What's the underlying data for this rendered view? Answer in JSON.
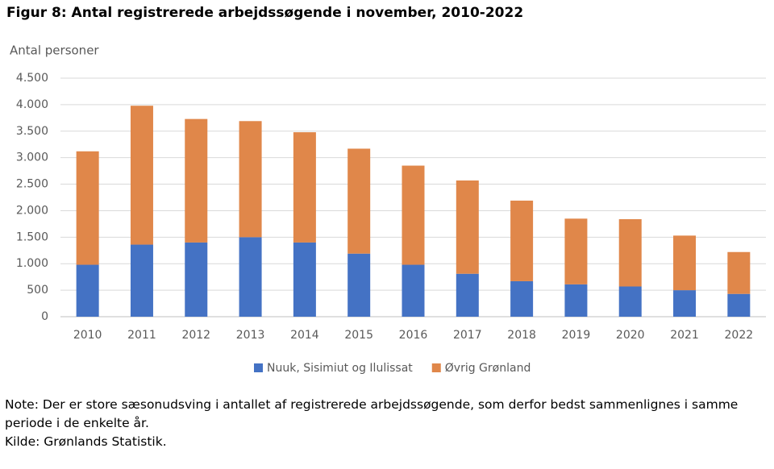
{
  "chart_data": {
    "type": "stacked-bar",
    "title": "Figur 8: Antal registrerede arbejdssøgende i november, 2010-2022",
    "y_label": "Antal personer",
    "categories": [
      "2010",
      "2011",
      "2012",
      "2013",
      "2014",
      "2015",
      "2016",
      "2017",
      "2018",
      "2019",
      "2020",
      "2021",
      "2022"
    ],
    "series": [
      {
        "name": "Nuuk, Sisimiut og Ilulissat",
        "color": "#4472c4",
        "values": [
          980,
          1360,
          1400,
          1500,
          1400,
          1190,
          980,
          810,
          670,
          610,
          570,
          500,
          430
        ]
      },
      {
        "name": "Øvrig Grønland",
        "color": "#e0874a",
        "values": [
          2140,
          2620,
          2330,
          2190,
          2080,
          1980,
          1870,
          1760,
          1520,
          1240,
          1270,
          1030,
          790
        ]
      }
    ],
    "ylim": [
      0,
      4500
    ],
    "yticks": [
      0,
      500,
      {
        "value": 1000,
        "label": "1.000"
      },
      {
        "value": 1500,
        "label": "1.500"
      },
      {
        "value": 2000,
        "label": "2.000"
      },
      {
        "value": 2500,
        "label": "2.500"
      },
      {
        "value": 3000,
        "label": "3.000"
      },
      {
        "value": 3500,
        "label": "3.500"
      },
      {
        "value": 4000,
        "label": "4.000"
      },
      {
        "value": 4500,
        "label": "4.500"
      }
    ],
    "grid": true,
    "notes": [
      "Note: Der er store sæsonudsving i antallet af registrerede arbejdssøgende, som derfor bedst sammenlignes i samme periode i de enkelte år.",
      "Kilde: Grønlands Statistik."
    ]
  }
}
